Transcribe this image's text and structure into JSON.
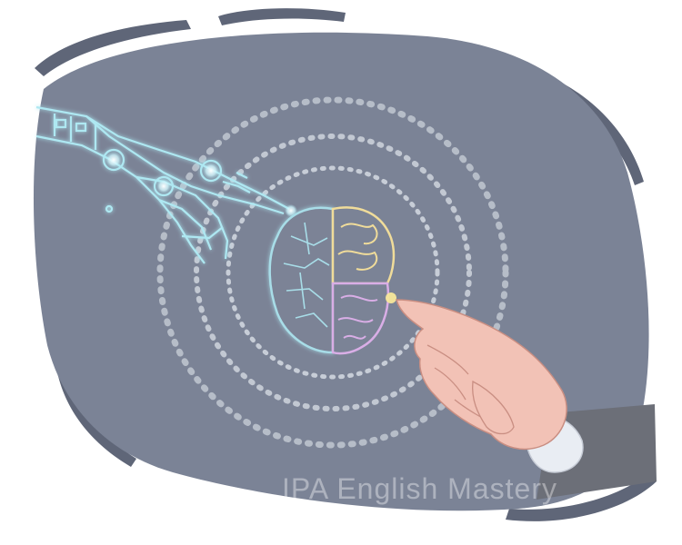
{
  "illustration": {
    "subject": "robot-hand-and-human-hand-touching-brain",
    "colors": {
      "background_blob": "#7b8396",
      "frame_strokes": "#5f6678",
      "circuit_glow": "#aee8f2",
      "brain_left": "#a8dde8",
      "brain_right_top": "#f0dc9a",
      "brain_right_bottom": "#d9aee6",
      "human_skin": "#f2c2b6",
      "sleeve": "#6c6f78",
      "rings": "#e8ecf2"
    },
    "icons": [
      "robot-hand-icon",
      "brain-icon",
      "human-hand-icon"
    ]
  },
  "watermark": {
    "text": "IPA English Mastery"
  }
}
